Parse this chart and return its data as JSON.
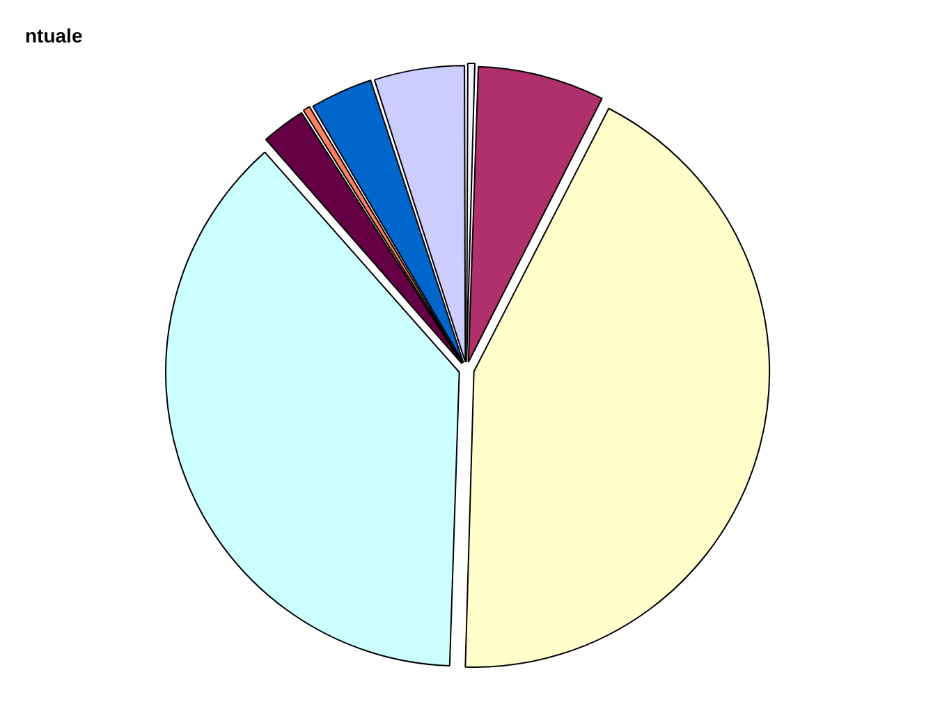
{
  "chart_data": {
    "type": "pie",
    "title": "ntuale",
    "categories": [
      null,
      null,
      null,
      null,
      null,
      null,
      null,
      null
    ],
    "values": [
      0.5,
      7,
      43,
      38,
      2.5,
      0.5,
      3.5,
      5
    ],
    "colors": [
      "#f4f4ff",
      "#b0306a",
      "#ffffcc",
      "#ccffff",
      "#660044",
      "#ff8060",
      "#0066cc",
      "#ccccff"
    ],
    "legend": false
  }
}
